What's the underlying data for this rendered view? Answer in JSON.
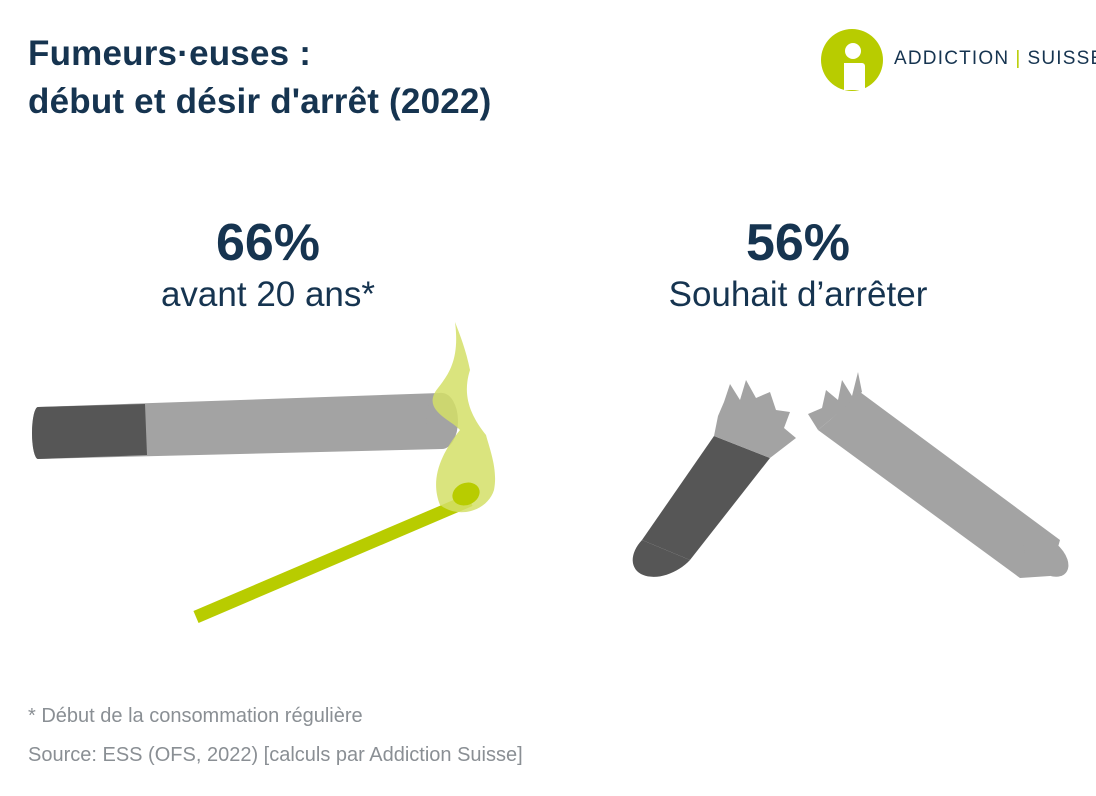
{
  "title": {
    "line1": "Fumeurs·euses :",
    "line2": "début et désir d'arrêt (2022)"
  },
  "logo": {
    "left_text": "ADDICTION",
    "right_text": "SUISSE",
    "icon": "addiction-suisse-logo-icon"
  },
  "stats": {
    "start": {
      "value": "66%",
      "label": "avant 20 ans*",
      "icon": "lit-cigarette-and-match-icon"
    },
    "quit": {
      "value": "56%",
      "label": "Souhait d’arrêter",
      "icon": "broken-cigarette-icon"
    }
  },
  "footer": {
    "note": "* Début de la consommation régulière",
    "source": "Source: ESS (OFS, 2022) [calculs par Addiction Suisse]"
  },
  "colors": {
    "navy": "#163450",
    "lime": "#b8cc00",
    "flame": "#d4df67",
    "cigarette": "#a3a3a3",
    "filter": "#565656",
    "footnote_gray": "#8a8f94"
  }
}
